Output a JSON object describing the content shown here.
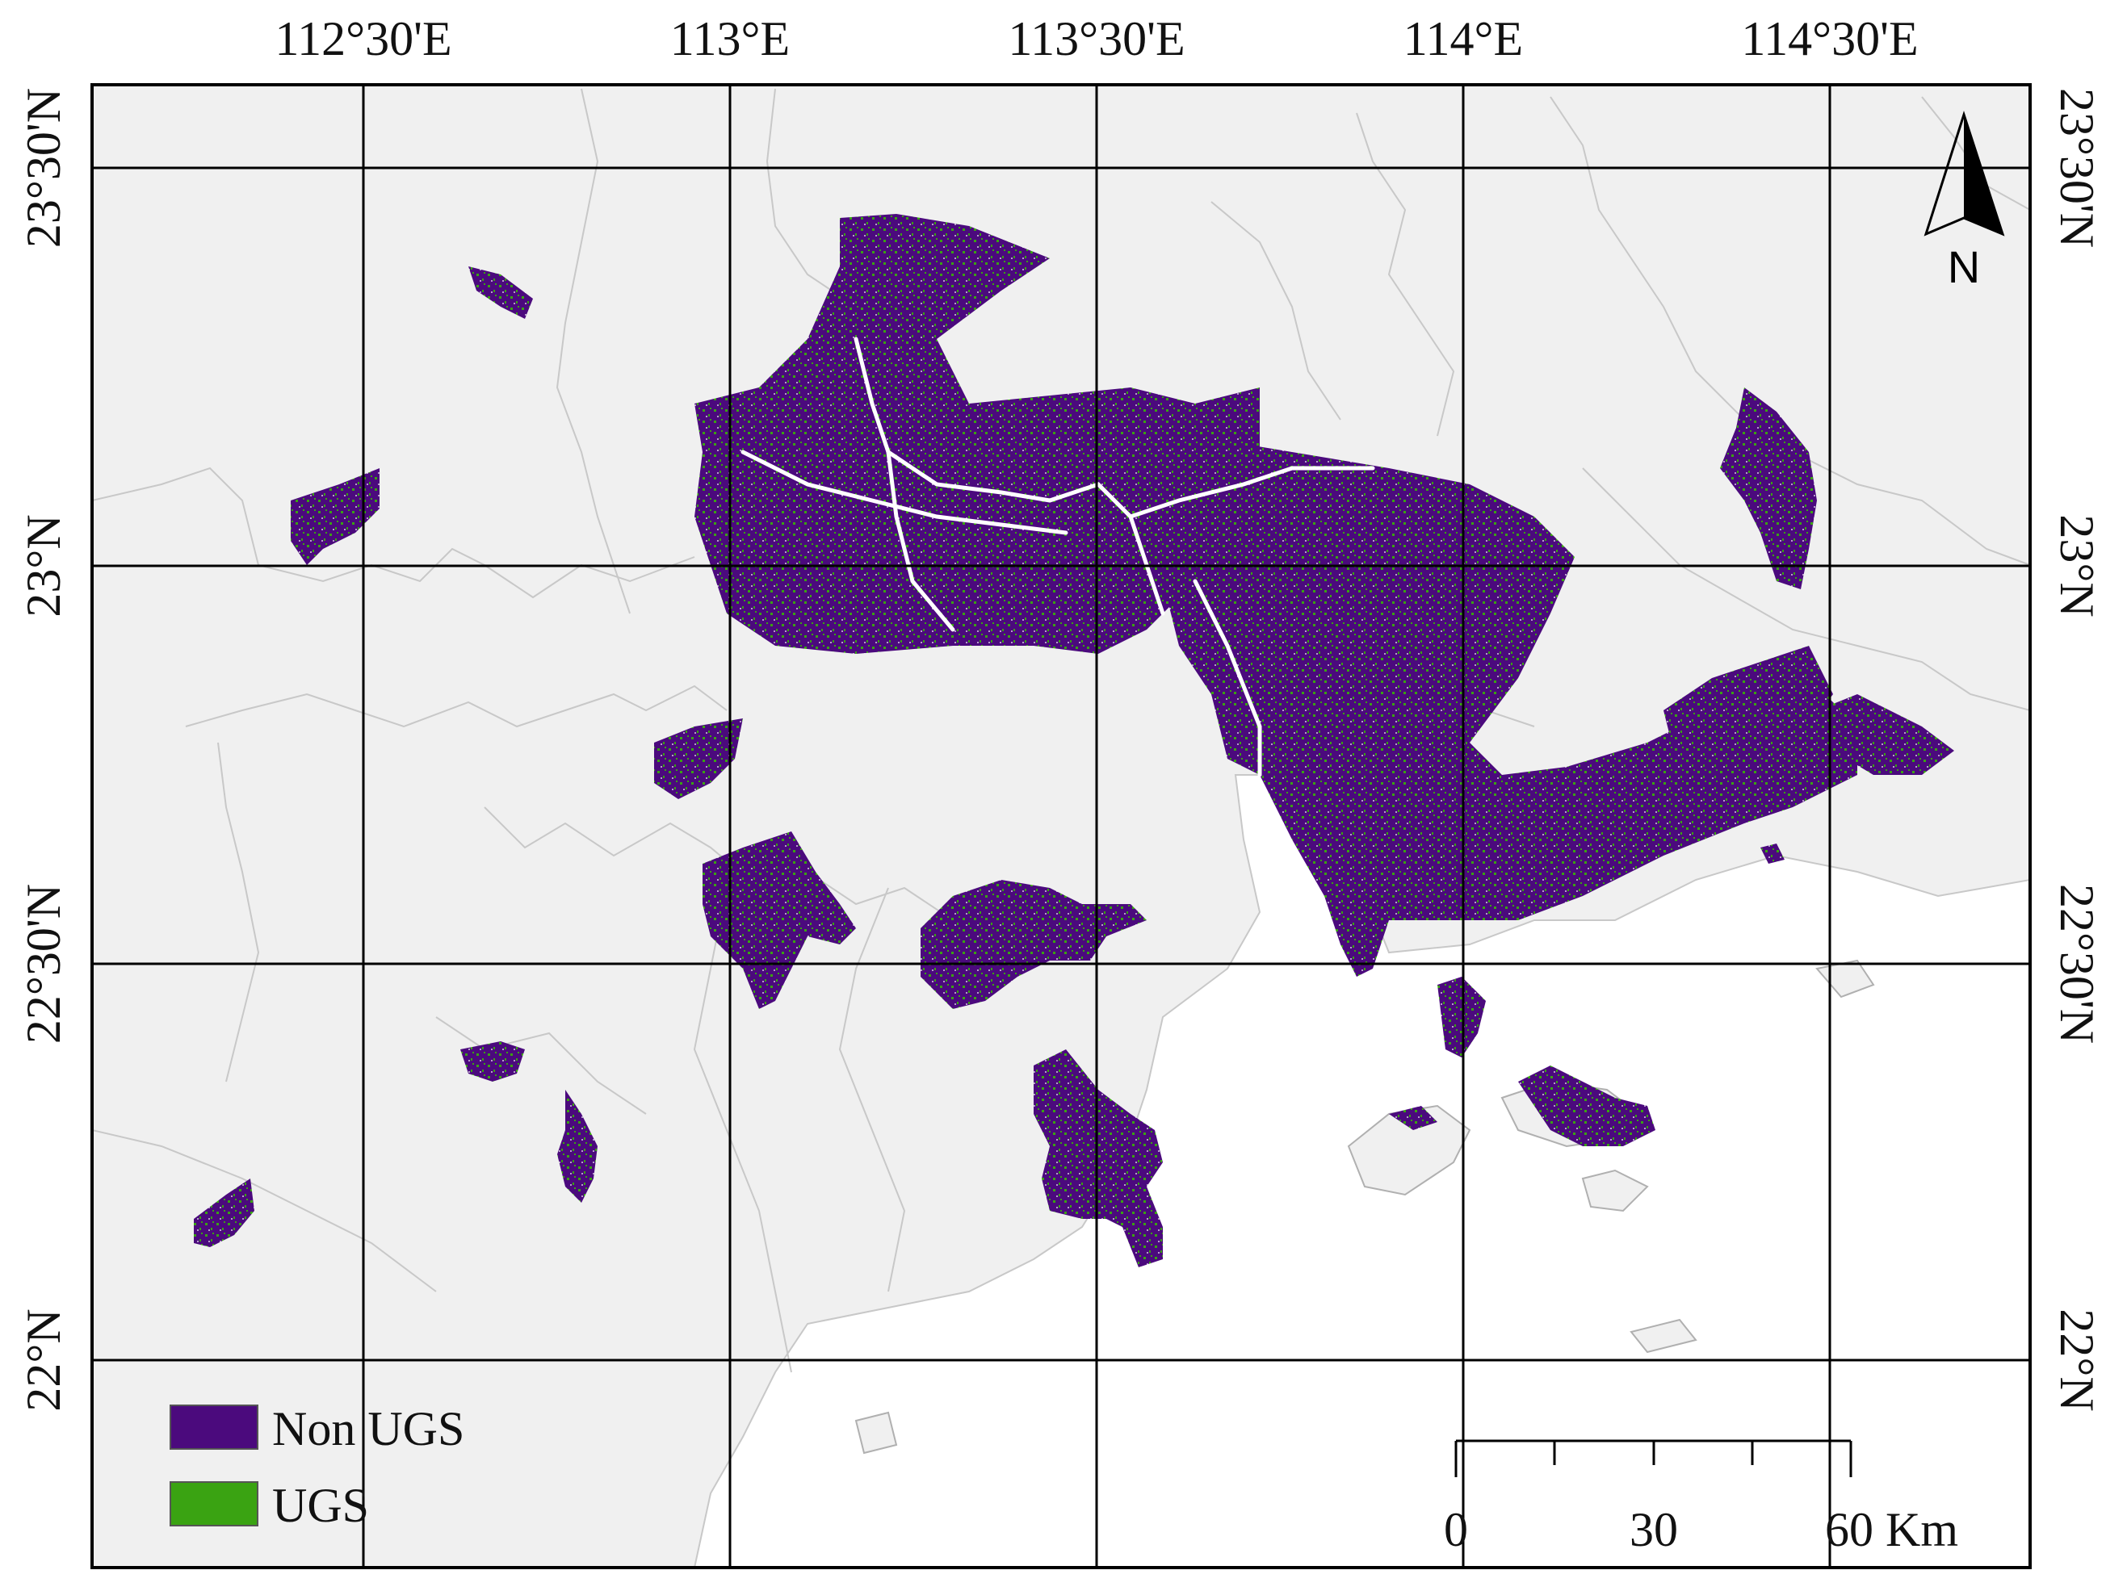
{
  "map": {
    "top_lon_labels": [
      "112°30'E",
      "113°E",
      "113°30'E",
      "114°E",
      "114°30'E"
    ],
    "left_lat_labels": [
      "23°30'N",
      "23°N",
      "22°30'N",
      "22°N"
    ],
    "right_lat_labels": [
      "23°30'N",
      "23°N",
      "22°30'N",
      "22°N"
    ],
    "north_arrow_label": "N",
    "colors": {
      "land": "#f0f0f0",
      "water": "#ffffff",
      "boundary": "#c8c8c8",
      "non_ugs": "#4b0a7d",
      "ugs": "#3aa312",
      "grid": "#000000"
    }
  },
  "legend": {
    "items": [
      {
        "label": "Non UGS",
        "color": "#4b0a7d"
      },
      {
        "label": "UGS",
        "color": "#3aa312"
      }
    ]
  },
  "scale_bar": {
    "tick_labels": [
      "0",
      "30",
      "60 Km"
    ]
  }
}
